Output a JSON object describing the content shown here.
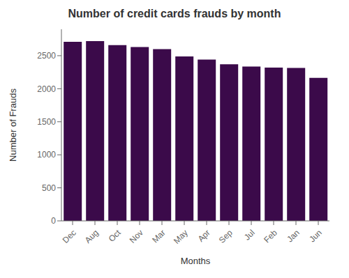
{
  "chart_data": {
    "type": "bar",
    "title": "Number of credit cards frauds by month",
    "xlabel": "Months",
    "ylabel": "Number of Frauds",
    "categories": [
      "Dec",
      "Aug",
      "Oct",
      "Nov",
      "Mar",
      "May",
      "Apr",
      "Sep",
      "Jul",
      "Feb",
      "Jan",
      "Jun"
    ],
    "values": [
      2710,
      2720,
      2660,
      2630,
      2600,
      2490,
      2440,
      2370,
      2335,
      2320,
      2315,
      2165
    ],
    "color": "#3b0a4a",
    "ylim": [
      0,
      2900
    ],
    "yticks": [
      0,
      500,
      1000,
      1500,
      2000,
      2500
    ],
    "grid": false
  }
}
